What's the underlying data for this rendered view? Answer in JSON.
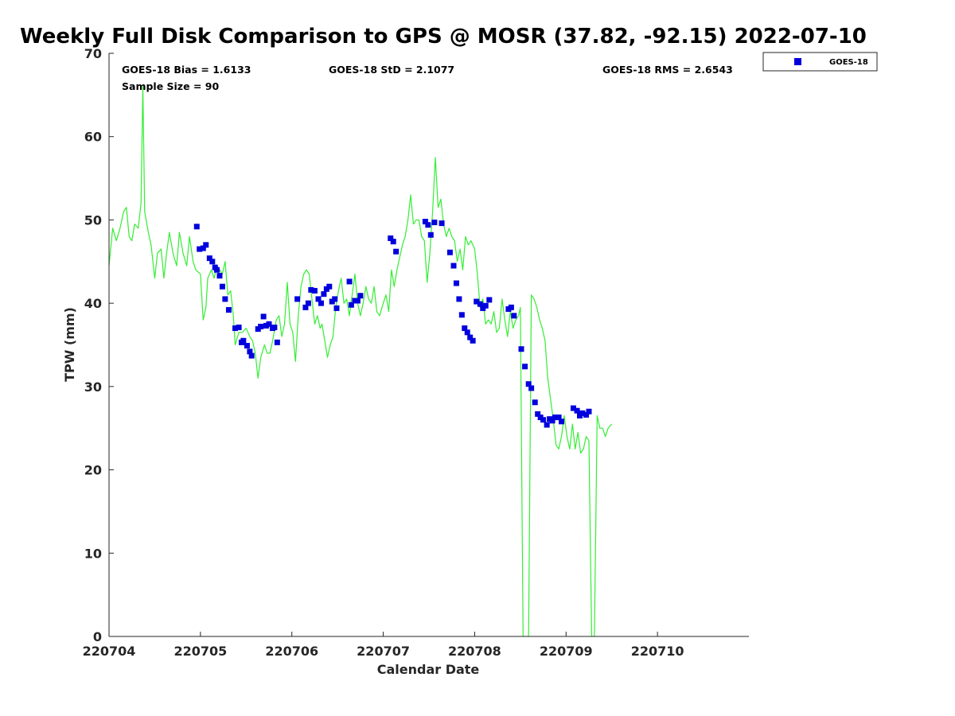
{
  "chart_data": {
    "type": "line+scatter",
    "title": "Weekly Full Disk Comparison to GPS @ MOSR (37.82, -92.15) 2022-07-10",
    "xlabel": "Calendar Date",
    "ylabel": "TPW (mm)",
    "xlim": [
      0,
      7
    ],
    "ylim": [
      0,
      70
    ],
    "x_ticks": [
      {
        "x": 0,
        "label": "220704"
      },
      {
        "x": 1,
        "label": "220705"
      },
      {
        "x": 2,
        "label": "220706"
      },
      {
        "x": 3,
        "label": "220707"
      },
      {
        "x": 4,
        "label": "220708"
      },
      {
        "x": 5,
        "label": "220709"
      },
      {
        "x": 6,
        "label": "220710"
      }
    ],
    "y_ticks": [
      {
        "y": 0,
        "label": "0"
      },
      {
        "y": 10,
        "label": "10"
      },
      {
        "y": 20,
        "label": "20"
      },
      {
        "y": 30,
        "label": "30"
      },
      {
        "y": 40,
        "label": "40"
      },
      {
        "y": 50,
        "label": "50"
      },
      {
        "y": 60,
        "label": "60"
      },
      {
        "y": 70,
        "label": "70"
      }
    ],
    "stats": {
      "bias": "GOES-18 Bias = 1.6133",
      "std": "GOES-18 StD = 2.1077",
      "rms": "GOES-18 RMS = 2.6543",
      "sample": "Sample Size = 90"
    },
    "legend": [
      {
        "label": "GOES-18",
        "marker": "square",
        "color": "#0000dd"
      }
    ],
    "legend_position": "outside-top-right",
    "series": [
      {
        "name": "GPS",
        "kind": "line",
        "color": "#33ee33",
        "points": [
          [
            0.0,
            44.5
          ],
          [
            0.04,
            49.0
          ],
          [
            0.08,
            47.5
          ],
          [
            0.12,
            49.0
          ],
          [
            0.16,
            51.0
          ],
          [
            0.19,
            51.5
          ],
          [
            0.22,
            48.0
          ],
          [
            0.25,
            47.5
          ],
          [
            0.28,
            49.5
          ],
          [
            0.32,
            49.0
          ],
          [
            0.35,
            52.0
          ],
          [
            0.37,
            66.0
          ],
          [
            0.39,
            51.0
          ],
          [
            0.43,
            48.5
          ],
          [
            0.46,
            47.0
          ],
          [
            0.5,
            43.0
          ],
          [
            0.53,
            46.0
          ],
          [
            0.57,
            46.5
          ],
          [
            0.6,
            43.0
          ],
          [
            0.63,
            46.0
          ],
          [
            0.66,
            48.5
          ],
          [
            0.7,
            46.0
          ],
          [
            0.74,
            44.5
          ],
          [
            0.77,
            48.5
          ],
          [
            0.81,
            46.0
          ],
          [
            0.85,
            44.5
          ],
          [
            0.88,
            48.0
          ],
          [
            0.92,
            45.0
          ],
          [
            0.95,
            44.0
          ],
          [
            1.0,
            43.5
          ],
          [
            1.03,
            38.0
          ],
          [
            1.06,
            39.5
          ],
          [
            1.08,
            43.0
          ],
          [
            1.12,
            44.0
          ],
          [
            1.15,
            43.0
          ],
          [
            1.18,
            44.5
          ],
          [
            1.21,
            44.0
          ],
          [
            1.24,
            43.5
          ],
          [
            1.27,
            45.0
          ],
          [
            1.3,
            41.0
          ],
          [
            1.33,
            41.5
          ],
          [
            1.36,
            38.5
          ],
          [
            1.38,
            35.0
          ],
          [
            1.42,
            36.5
          ],
          [
            1.46,
            36.5
          ],
          [
            1.5,
            37.0
          ],
          [
            1.54,
            36.0
          ],
          [
            1.57,
            35.5
          ],
          [
            1.6,
            34.0
          ],
          [
            1.63,
            31.0
          ],
          [
            1.66,
            33.5
          ],
          [
            1.7,
            35.0
          ],
          [
            1.73,
            34.0
          ],
          [
            1.76,
            34.0
          ],
          [
            1.79,
            35.5
          ],
          [
            1.83,
            38.0
          ],
          [
            1.86,
            38.5
          ],
          [
            1.89,
            36.0
          ],
          [
            1.92,
            37.5
          ],
          [
            1.95,
            42.5
          ],
          [
            1.98,
            37.5
          ],
          [
            2.01,
            36.5
          ],
          [
            2.04,
            33.0
          ],
          [
            2.07,
            38.5
          ],
          [
            2.1,
            42.0
          ],
          [
            2.13,
            43.5
          ],
          [
            2.16,
            44.0
          ],
          [
            2.19,
            43.5
          ],
          [
            2.22,
            40.5
          ],
          [
            2.25,
            37.5
          ],
          [
            2.28,
            38.5
          ],
          [
            2.31,
            37.0
          ],
          [
            2.33,
            37.5
          ],
          [
            2.36,
            35.5
          ],
          [
            2.39,
            33.5
          ],
          [
            2.42,
            35.0
          ],
          [
            2.45,
            36.0
          ],
          [
            2.48,
            39.5
          ],
          [
            2.51,
            41.5
          ],
          [
            2.54,
            43.0
          ],
          [
            2.57,
            40.0
          ],
          [
            2.6,
            40.5
          ],
          [
            2.63,
            38.5
          ],
          [
            2.66,
            41.0
          ],
          [
            2.69,
            43.5
          ],
          [
            2.72,
            40.0
          ],
          [
            2.75,
            38.5
          ],
          [
            2.78,
            40.0
          ],
          [
            2.81,
            42.0
          ],
          [
            2.84,
            40.5
          ],
          [
            2.87,
            40.0
          ],
          [
            2.9,
            42.0
          ],
          [
            2.93,
            39.0
          ],
          [
            2.96,
            38.5
          ],
          [
            3.0,
            40.0
          ],
          [
            3.03,
            41.0
          ],
          [
            3.06,
            39.0
          ],
          [
            3.09,
            44.0
          ],
          [
            3.12,
            42.0
          ],
          [
            3.15,
            44.0
          ],
          [
            3.18,
            45.5
          ],
          [
            3.21,
            47.0
          ],
          [
            3.24,
            48.0
          ],
          [
            3.27,
            50.0
          ],
          [
            3.3,
            53.0
          ],
          [
            3.33,
            49.5
          ],
          [
            3.36,
            50.0
          ],
          [
            3.39,
            50.0
          ],
          [
            3.42,
            48.0
          ],
          [
            3.45,
            47.5
          ],
          [
            3.48,
            42.5
          ],
          [
            3.51,
            46.0
          ],
          [
            3.54,
            51.0
          ],
          [
            3.57,
            57.5
          ],
          [
            3.6,
            51.5
          ],
          [
            3.63,
            52.5
          ],
          [
            3.66,
            49.5
          ],
          [
            3.69,
            48.0
          ],
          [
            3.72,
            49.0
          ],
          [
            3.75,
            48.0
          ],
          [
            3.78,
            47.5
          ],
          [
            3.81,
            45.0
          ],
          [
            3.84,
            46.5
          ],
          [
            3.87,
            44.0
          ],
          [
            3.9,
            48.0
          ],
          [
            3.93,
            47.0
          ],
          [
            3.96,
            47.5
          ],
          [
            4.0,
            46.5
          ],
          [
            4.03,
            43.5
          ],
          [
            4.06,
            39.5
          ],
          [
            4.09,
            40.5
          ],
          [
            4.12,
            37.5
          ],
          [
            4.15,
            38.0
          ],
          [
            4.18,
            37.5
          ],
          [
            4.21,
            39.0
          ],
          [
            4.24,
            36.5
          ],
          [
            4.27,
            37.0
          ],
          [
            4.3,
            40.5
          ],
          [
            4.33,
            38.0
          ],
          [
            4.36,
            36.0
          ],
          [
            4.39,
            39.0
          ],
          [
            4.42,
            37.0
          ],
          [
            4.45,
            38.0
          ],
          [
            4.48,
            38.5
          ],
          [
            4.5,
            39.5
          ],
          [
            4.53,
            0.0
          ],
          [
            4.56,
            0.0
          ],
          [
            4.59,
            0.0
          ],
          [
            4.62,
            41.0
          ],
          [
            4.65,
            40.5
          ],
          [
            4.68,
            39.5
          ],
          [
            4.71,
            38.0
          ],
          [
            4.74,
            37.0
          ],
          [
            4.77,
            35.5
          ],
          [
            4.8,
            31.0
          ],
          [
            4.83,
            28.5
          ],
          [
            4.86,
            26.0
          ],
          [
            4.89,
            23.0
          ],
          [
            4.92,
            22.5
          ],
          [
            4.95,
            24.0
          ],
          [
            4.98,
            26.5
          ],
          [
            5.01,
            24.0
          ],
          [
            5.04,
            22.5
          ],
          [
            5.07,
            25.5
          ],
          [
            5.1,
            22.5
          ],
          [
            5.13,
            24.5
          ],
          [
            5.16,
            22.0
          ],
          [
            5.19,
            22.5
          ],
          [
            5.22,
            24.0
          ],
          [
            5.25,
            23.5
          ],
          [
            5.28,
            0.0
          ],
          [
            5.31,
            0.0
          ],
          [
            5.34,
            26.5
          ],
          [
            5.37,
            25.0
          ],
          [
            5.4,
            25.0
          ],
          [
            5.43,
            24.0
          ],
          [
            5.46,
            25.0
          ],
          [
            5.5,
            25.5
          ]
        ]
      },
      {
        "name": "GOES-18",
        "kind": "scatter",
        "color": "#0000dd",
        "points": [
          [
            0.96,
            49.2
          ],
          [
            0.99,
            46.5
          ],
          [
            1.03,
            46.6
          ],
          [
            1.06,
            47.0
          ],
          [
            1.1,
            45.4
          ],
          [
            1.13,
            45.0
          ],
          [
            1.16,
            44.3
          ],
          [
            1.18,
            44.0
          ],
          [
            1.21,
            43.3
          ],
          [
            1.24,
            42.0
          ],
          [
            1.27,
            40.5
          ],
          [
            1.31,
            39.2
          ],
          [
            1.38,
            37.0
          ],
          [
            1.42,
            37.1
          ],
          [
            1.45,
            35.3
          ],
          [
            1.47,
            35.5
          ],
          [
            1.51,
            34.9
          ],
          [
            1.54,
            34.2
          ],
          [
            1.56,
            33.7
          ],
          [
            1.63,
            36.9
          ],
          [
            1.66,
            37.2
          ],
          [
            1.69,
            38.4
          ],
          [
            1.72,
            37.3
          ],
          [
            1.75,
            37.5
          ],
          [
            1.79,
            37.0
          ],
          [
            1.81,
            37.1
          ],
          [
            1.84,
            35.3
          ],
          [
            2.06,
            40.5
          ],
          [
            2.15,
            39.5
          ],
          [
            2.18,
            40.0
          ],
          [
            2.21,
            41.6
          ],
          [
            2.25,
            41.5
          ],
          [
            2.29,
            40.5
          ],
          [
            2.32,
            40.0
          ],
          [
            2.35,
            41.1
          ],
          [
            2.38,
            41.7
          ],
          [
            2.41,
            42.0
          ],
          [
            2.44,
            40.2
          ],
          [
            2.47,
            40.5
          ],
          [
            2.49,
            39.4
          ],
          [
            2.63,
            42.6
          ],
          [
            2.65,
            39.8
          ],
          [
            2.69,
            40.3
          ],
          [
            2.72,
            40.3
          ],
          [
            2.75,
            40.9
          ],
          [
            3.08,
            47.8
          ],
          [
            3.11,
            47.4
          ],
          [
            3.14,
            46.2
          ],
          [
            3.46,
            49.8
          ],
          [
            3.49,
            49.4
          ],
          [
            3.52,
            48.2
          ],
          [
            3.56,
            49.7
          ],
          [
            3.64,
            49.6
          ],
          [
            3.73,
            46.1
          ],
          [
            3.77,
            44.5
          ],
          [
            3.8,
            42.4
          ],
          [
            3.83,
            40.5
          ],
          [
            3.86,
            38.6
          ],
          [
            3.89,
            37.0
          ],
          [
            3.92,
            36.5
          ],
          [
            3.95,
            35.9
          ],
          [
            3.98,
            35.5
          ],
          [
            4.02,
            40.2
          ],
          [
            4.06,
            39.9
          ],
          [
            4.09,
            39.4
          ],
          [
            4.12,
            39.7
          ],
          [
            4.16,
            40.4
          ],
          [
            4.37,
            39.3
          ],
          [
            4.4,
            39.5
          ],
          [
            4.43,
            38.5
          ],
          [
            4.51,
            34.5
          ],
          [
            4.55,
            32.4
          ],
          [
            4.59,
            30.3
          ],
          [
            4.62,
            29.8
          ],
          [
            4.66,
            28.1
          ],
          [
            4.69,
            26.7
          ],
          [
            4.72,
            26.3
          ],
          [
            4.75,
            26.0
          ],
          [
            4.79,
            25.4
          ],
          [
            4.82,
            26.1
          ],
          [
            4.85,
            25.9
          ],
          [
            4.88,
            26.3
          ],
          [
            4.92,
            26.3
          ],
          [
            4.95,
            25.8
          ],
          [
            5.08,
            27.4
          ],
          [
            5.12,
            27.1
          ],
          [
            5.15,
            26.5
          ],
          [
            5.18,
            26.8
          ],
          [
            5.22,
            26.6
          ],
          [
            5.25,
            27.0
          ]
        ]
      }
    ]
  }
}
